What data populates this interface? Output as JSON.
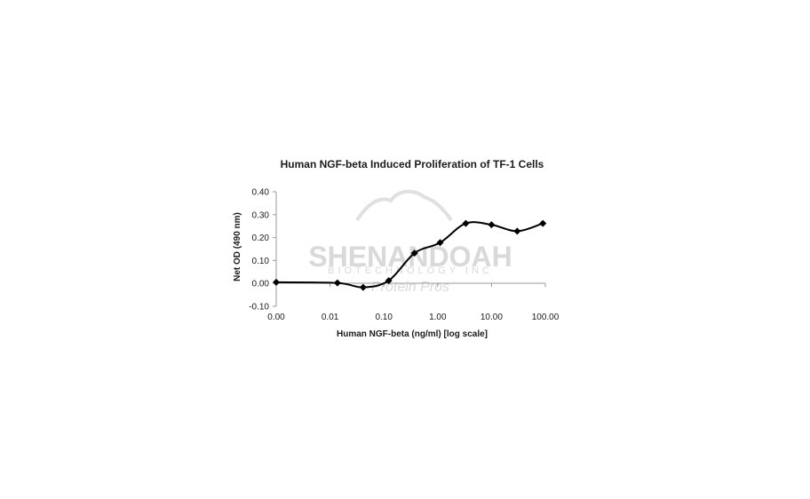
{
  "chart_data": {
    "type": "line",
    "title": "Human NGF-beta Induced Proliferation of TF-1 Cells",
    "xlabel": "Human NGF-beta (ng/ml) [log scale]",
    "ylabel": "Net OD (490 nm)",
    "x_scale": "log",
    "xlim": [
      0.001,
      100
    ],
    "ylim": [
      -0.1,
      0.4
    ],
    "x_ticks": [
      0.001,
      0.01,
      0.1,
      1,
      10,
      100
    ],
    "x_tick_labels": [
      "0.00",
      "0.01",
      "0.10",
      "1.00",
      "10.00",
      "100.00"
    ],
    "y_ticks": [
      -0.1,
      0.0,
      0.1,
      0.2,
      0.3,
      0.4
    ],
    "y_tick_labels": [
      "-0.10",
      "0.00",
      "0.10",
      "0.20",
      "0.30",
      "0.40"
    ],
    "grid": false,
    "legend": "none",
    "smooth": true,
    "series": [
      {
        "marker": "diamond",
        "color": "#000000",
        "x": [
          0.001,
          0.0137,
          0.0412,
          0.123,
          0.37,
          1.11,
          3.33,
          10.0,
          30.0,
          90.0
        ],
        "y": [
          0.005,
          0.002,
          -0.017,
          0.012,
          0.132,
          0.178,
          0.262,
          0.256,
          0.228,
          0.262
        ]
      }
    ]
  },
  "watermark": {
    "brand": "SHENANDOAH",
    "sub": "BIOTECHNOLOGY INC",
    "script": "Protein Pros"
  }
}
